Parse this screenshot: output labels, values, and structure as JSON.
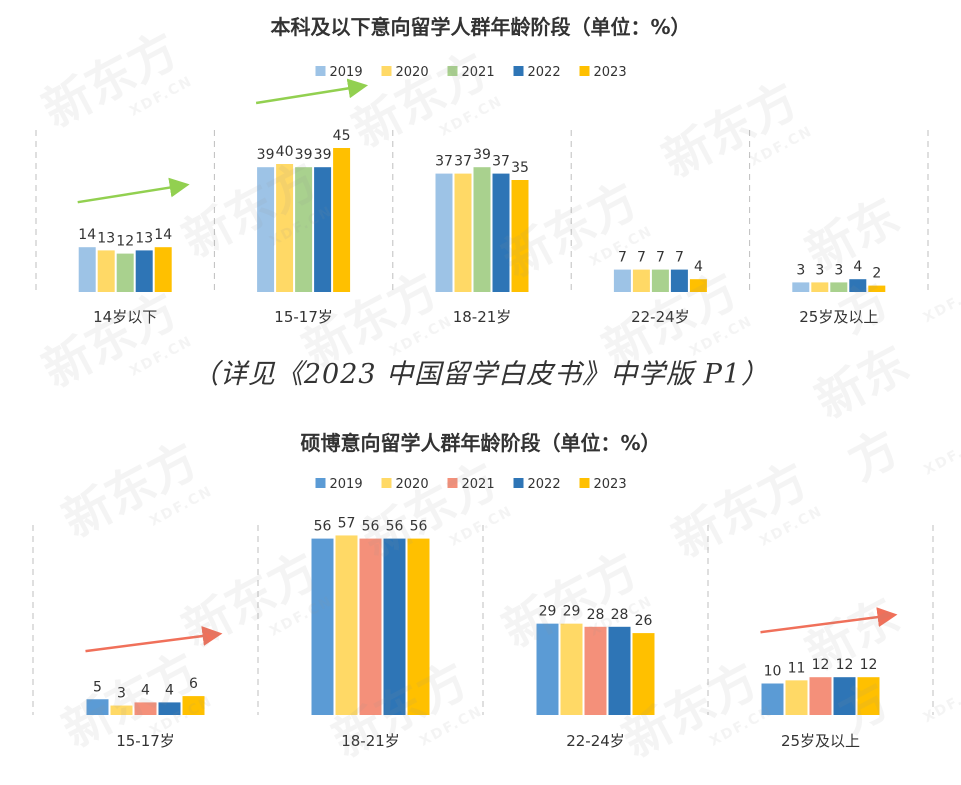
{
  "chart_data": [
    {
      "type": "bar",
      "title": "本科及以下意向留学人群年龄阶段（单位：%）",
      "categories": [
        "14岁以下",
        "15-17岁",
        "18-21岁",
        "22-24岁",
        "25岁及以上"
      ],
      "series": [
        {
          "name": "2019",
          "values": [
            14,
            39,
            37,
            7,
            3
          ]
        },
        {
          "name": "2020",
          "values": [
            13,
            40,
            37,
            7,
            3
          ]
        },
        {
          "name": "2021",
          "values": [
            12,
            39,
            39,
            7,
            3
          ]
        },
        {
          "name": "2022",
          "values": [
            13,
            39,
            37,
            7,
            4
          ]
        },
        {
          "name": "2023",
          "values": [
            14,
            45,
            35,
            4,
            2
          ]
        }
      ],
      "colors": [
        "#9DC3E6",
        "#FFD966",
        "#A9D18E",
        "#2E75B6",
        "#FFC000"
      ],
      "trend_arrows": [
        {
          "category": "14岁以下",
          "color": "#92D050"
        },
        {
          "category": "15-17岁",
          "color": "#92D050"
        }
      ],
      "legend": "top",
      "grid": false
    },
    {
      "type": "bar",
      "title": "硕博意向留学人群年龄阶段（单位：%）",
      "categories": [
        "15-17岁",
        "18-21岁",
        "22-24岁",
        "25岁及以上"
      ],
      "series": [
        {
          "name": "2019",
          "values": [
            5,
            56,
            29,
            10
          ]
        },
        {
          "name": "2020",
          "values": [
            3,
            57,
            29,
            11
          ]
        },
        {
          "name": "2021",
          "values": [
            4,
            56,
            28,
            12
          ]
        },
        {
          "name": "2022",
          "values": [
            4,
            56,
            28,
            12
          ]
        },
        {
          "name": "2023",
          "values": [
            6,
            56,
            26,
            12
          ]
        }
      ],
      "colors": [
        "#5B9BD5",
        "#FFD966",
        "#F4907A",
        "#2E75B6",
        "#FFC000"
      ],
      "trend_arrows": [
        {
          "category": "15-17岁",
          "color": "#F0705A"
        },
        {
          "category": "25岁及以上",
          "color": "#F0705A"
        }
      ],
      "legend": "top",
      "grid": false
    }
  ],
  "caption": "（详见《2023 中国留学白皮书》中学版 P1）",
  "watermark": {
    "text": "新东方",
    "sub": "XDF.CN"
  }
}
